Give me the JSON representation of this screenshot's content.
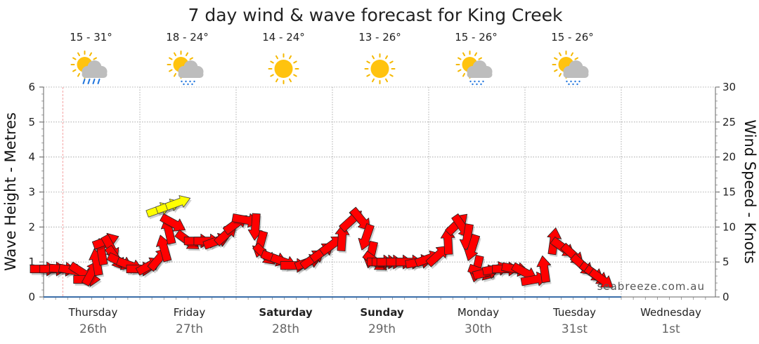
{
  "chart_data": {
    "type": "line",
    "title": "7 day wind & wave forecast for King Creek",
    "ylabel_left": "Wave Height - Metres",
    "ylabel_right": "Wind Speed - Knots",
    "ylim_left": [
      0,
      6
    ],
    "ylim_right": [
      0,
      30
    ],
    "yticks_left": [
      "0",
      "1",
      "2",
      "3",
      "4",
      "5",
      "6"
    ],
    "yticks_right": [
      "0",
      "5",
      "10",
      "15",
      "20",
      "25",
      "30"
    ],
    "watermark": "seabreeze.com.au",
    "days": [
      {
        "name": "Thursday",
        "date": "26th",
        "temp": "15 - 31°",
        "weather": "partly-cloudy-rain",
        "bold": false
      },
      {
        "name": "Friday",
        "date": "27th",
        "temp": "18 - 24°",
        "weather": "partly-cloudy-drizzle",
        "bold": false
      },
      {
        "name": "Saturday",
        "date": "28th",
        "temp": "14 - 24°",
        "weather": "sunny",
        "bold": true
      },
      {
        "name": "Sunday",
        "date": "29th",
        "temp": "13 - 26°",
        "weather": "sunny",
        "bold": true
      },
      {
        "name": "Monday",
        "date": "30th",
        "temp": "15 - 26°",
        "weather": "partly-cloudy-drizzle",
        "bold": false
      },
      {
        "name": "Tuesday",
        "date": "31st",
        "temp": "15 - 26°",
        "weather": "partly-cloudy-drizzle",
        "bold": false
      },
      {
        "name": "Wednesday",
        "date": "1st",
        "temp": "",
        "weather": "",
        "bold": false
      }
    ],
    "wind_series": {
      "name": "Wind speed (knots)",
      "x_days": [
        0.0,
        0.1,
        0.2,
        0.3,
        0.4,
        0.45,
        0.5,
        0.55,
        0.6,
        0.65,
        0.7,
        0.75,
        0.8,
        0.9,
        1.0,
        1.1,
        1.2,
        1.25,
        1.3,
        1.35,
        1.5,
        1.6,
        1.7,
        1.8,
        1.9,
        2.0,
        2.1,
        2.2,
        2.25,
        2.3,
        2.4,
        2.5,
        2.6,
        2.75,
        2.8,
        2.9,
        3.0,
        3.1,
        3.2,
        3.3,
        3.35,
        3.4,
        3.45,
        3.5,
        3.55,
        3.6,
        3.7,
        3.8,
        3.9,
        4.0,
        4.1,
        4.2,
        4.3,
        4.35,
        4.4,
        4.45,
        4.5,
        4.55,
        4.6,
        4.7,
        4.8,
        4.9,
        5.0,
        5.1,
        5.2,
        5.3,
        5.4,
        5.5,
        5.6,
        5.7,
        5.75,
        5.8
      ],
      "values": [
        4.0,
        4.0,
        4.0,
        3.8,
        3.5,
        2.5,
        3.5,
        5.0,
        6.5,
        8.0,
        7.0,
        5.5,
        5.0,
        4.5,
        4.0,
        4.5,
        5.5,
        7.0,
        9.5,
        10.5,
        8.0,
        8.0,
        8.0,
        8.0,
        9.0,
        10.5,
        11.0,
        10.0,
        7.5,
        6.0,
        5.5,
        5.0,
        4.5,
        5.0,
        5.5,
        6.5,
        7.5,
        8.5,
        11.0,
        11.0,
        8.5,
        6.0,
        5.0,
        5.0,
        5.0,
        5.0,
        5.0,
        5.0,
        5.0,
        5.5,
        6.0,
        8.0,
        10.5,
        10.0,
        8.5,
        7.0,
        4.0,
        3.5,
        3.5,
        4.0,
        4.0,
        4.0,
        3.5,
        2.5,
        4.0,
        8.0,
        7.0,
        6.0,
        4.5,
        3.5,
        3.0,
        2.5
      ]
    },
    "wave_series": {
      "name": "Wave height (metres)",
      "x_days": [
        0.0,
        1.0,
        2.0,
        3.0,
        4.0,
        5.0,
        6.0
      ],
      "values": [
        0.0,
        0.0,
        0.0,
        0.0,
        0.0,
        0.0,
        0.0
      ]
    },
    "gust_markers": {
      "x_days": [
        1.2,
        1.3,
        1.4
      ],
      "values": [
        12.5,
        13.0,
        13.5
      ]
    },
    "current_time_day": 0.2,
    "colors": {
      "arrow": "#ff0000",
      "gust_arrow": "#ffff00",
      "wave_line": "#3b6ea8",
      "grid": "#9a9a9a",
      "now_line": "#f4a0a0"
    }
  }
}
